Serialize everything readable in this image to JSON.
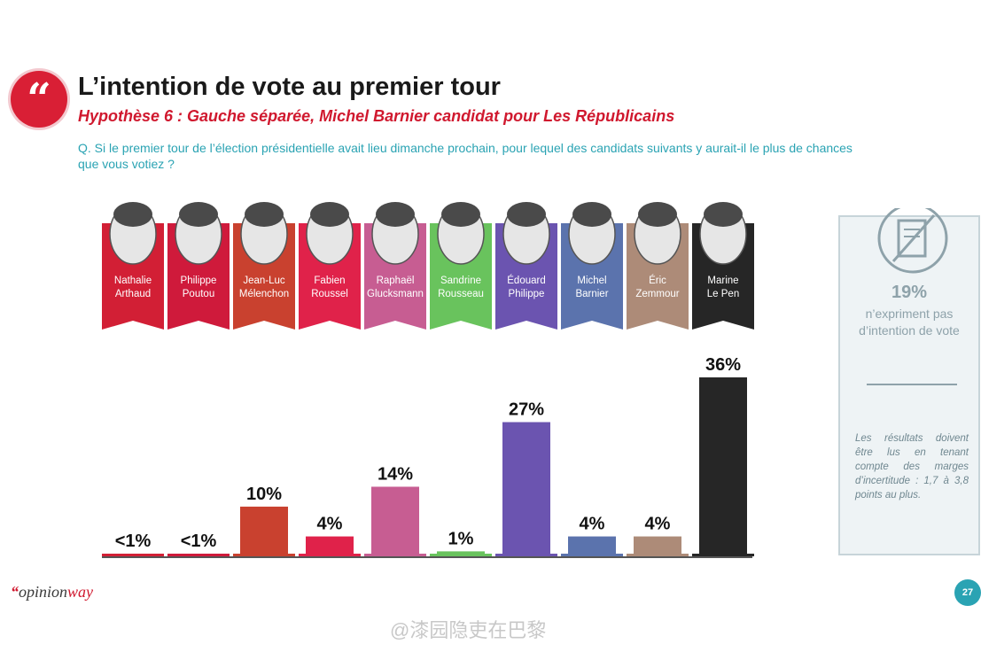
{
  "header": {
    "quote_glyph": "“",
    "title": "L’intention de vote au premier tour",
    "subtitle": "Hypothèse 6 : Gauche séparée, Michel Barnier candidat pour Les Républicains",
    "question": "Q. Si le premier tour de l’élection présidentielle avait lieu dimanche prochain, pour lequel des candidats suivants y aurait-il le plus de chances que vous votiez ?"
  },
  "chart_data": {
    "type": "bar",
    "categories": [
      "Nathalie Arthaud",
      "Philippe Poutou",
      "Jean-Luc Mélenchon",
      "Fabien Roussel",
      "Raphaël Glucksmann",
      "Sandrine Rousseau",
      "Édouard Philippe",
      "Michel Barnier",
      "Éric Zemmour",
      "Marine Le Pen"
    ],
    "candidates": [
      {
        "first": "Nathalie",
        "last": "Arthaud",
        "label": "<1%",
        "value": 0.5,
        "color": "#d21f35"
      },
      {
        "first": "Philippe",
        "last": "Poutou",
        "label": "<1%",
        "value": 0.5,
        "color": "#cf1a3b"
      },
      {
        "first": "Jean-Luc",
        "last": "Mélenchon",
        "label": "10%",
        "value": 10,
        "color": "#c9412f"
      },
      {
        "first": "Fabien",
        "last": "Roussel",
        "label": "4%",
        "value": 4,
        "color": "#e0224a"
      },
      {
        "first": "Raphaël",
        "last": "Glucksmann",
        "label": "14%",
        "value": 14,
        "color": "#c75d92"
      },
      {
        "first": "Sandrine",
        "last": "Rousseau",
        "label": "1%",
        "value": 1,
        "color": "#69c35d"
      },
      {
        "first": "Édouard",
        "last": "Philippe",
        "label": "27%",
        "value": 27,
        "color": "#6b54b0"
      },
      {
        "first": "Michel",
        "last": "Barnier",
        "label": "4%",
        "value": 4,
        "color": "#5b73ad"
      },
      {
        "first": "Éric",
        "last": "Zemmour",
        "label": "4%",
        "value": 4,
        "color": "#ad8b78"
      },
      {
        "first": "Marine",
        "last": "Le Pen",
        "label": "36%",
        "value": 36,
        "color": "#262626"
      }
    ],
    "ylim": [
      0,
      36
    ],
    "grid": false,
    "legend": "none"
  },
  "sidebar": {
    "no_vote_pct": "19%",
    "no_vote_text": "n’expriment pas d’intention de vote",
    "note": "Les résultats doivent être lus en tenant compte des marges d’incertitude : 1,7 à 3,8 points au plus."
  },
  "footer": {
    "logo_quote": "“",
    "logo_opinion": "opinion",
    "logo_way": "way",
    "page_number": "27",
    "watermark": "@漆园隐吏在巴黎"
  }
}
